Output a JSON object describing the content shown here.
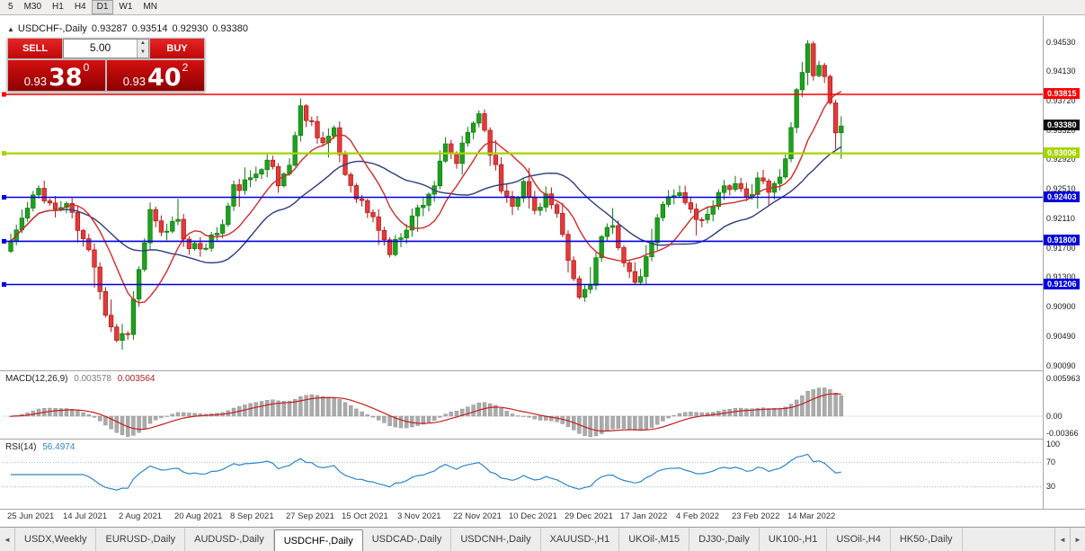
{
  "toolbar": {
    "timeframes": [
      "5",
      "M30",
      "H1",
      "H4",
      "D1",
      "W1",
      "MN"
    ],
    "active": "D1"
  },
  "chart_info": {
    "collapse_icon": "▲",
    "symbol": "USDCHF-,Daily",
    "open": "0.93287",
    "high": "0.93514",
    "low": "0.92930",
    "close": "0.93380"
  },
  "trade_panel": {
    "sell_label": "SELL",
    "buy_label": "BUY",
    "volume": "5.00",
    "spin_up": "▲",
    "spin_down": "▼",
    "sell_price": {
      "prefix": "0.93",
      "big": "38",
      "sup": "0"
    },
    "buy_price": {
      "prefix": "0.93",
      "big": "40",
      "sup": "2"
    }
  },
  "price_axis": {
    "labels": [
      "0.94530",
      "0.94130",
      "0.93720",
      "0.93320",
      "0.92920",
      "0.92510",
      "0.92110",
      "0.91700",
      "0.91300",
      "0.90900",
      "0.90490",
      "0.90090"
    ]
  },
  "levels": [
    {
      "name": "resistance-red",
      "label": "0.93815",
      "price": 0.93815,
      "color": "#ff0000",
      "width": 1.4
    },
    {
      "name": "support-green",
      "label": "0.93006",
      "price": 0.93006,
      "color": "#a6d400",
      "width": 2.2
    },
    {
      "name": "support-blue-1",
      "label": "0.92403",
      "price": 0.92403,
      "color": "#0000dd",
      "width": 1.6
    },
    {
      "name": "support-blue-2",
      "label": "0.91800",
      "price": 0.918,
      "color": "#0000dd",
      "width": 1.6
    },
    {
      "name": "support-blue-3",
      "label": "0.91206",
      "price": 0.91206,
      "color": "#0000dd",
      "width": 1.6
    }
  ],
  "current_price": {
    "label": "0.93380",
    "price": 0.9338,
    "color": "#111111"
  },
  "macd": {
    "name": "MACD(12,26,9)",
    "main_value": "0.003578",
    "signal_value": "0.003564",
    "axis_labels": [
      "0.005963",
      "0.00",
      "-0.00366"
    ]
  },
  "rsi": {
    "name": "RSI(14)",
    "value": "56.4974",
    "axis_labels": [
      "100",
      "70",
      "30"
    ],
    "levels": [
      70,
      30
    ]
  },
  "date_axis": [
    "25 Jun 2021",
    "14 Jul 2021",
    "2 Aug 2021",
    "20 Aug 2021",
    "8 Sep 2021",
    "27 Sep 2021",
    "15 Oct 2021",
    "3 Nov 2021",
    "22 Nov 2021",
    "10 Dec 2021",
    "29 Dec 2021",
    "17 Jan 2022",
    "4 Feb 2022",
    "23 Feb 2022",
    "14 Mar 2022"
  ],
  "tab_bar": {
    "scroll_left": "◄",
    "scroll_right_prev": "◄",
    "scroll_right_next": "►",
    "tabs": [
      "USDX,Weekly",
      "EURUSD-,Daily",
      "AUDUSD-,Daily",
      "USDCHF-,Daily",
      "USDCAD-,Daily",
      "USDCNH-,Daily",
      "XAUUSD-,H1",
      "UKOil-,M15",
      "DJ30-,Daily",
      "UK100-,H1",
      "USOil-,H4",
      "HK50-,Daily"
    ],
    "active": "USDCHF-,Daily"
  },
  "chart_data": {
    "type": "candlestick",
    "symbol": "USDCHF",
    "period": "Daily",
    "bars": 150,
    "seed": 11,
    "price_max_axis": 0.9453,
    "price_min_axis": 0.9009,
    "last_bar": {
      "open": 0.93287,
      "high": 0.93514,
      "low": 0.9293,
      "close": 0.9338
    },
    "peak_high": 0.9452,
    "waypoints": [
      [
        0,
        0.918
      ],
      [
        2,
        0.921
      ],
      [
        5,
        0.9252
      ],
      [
        8,
        0.9222
      ],
      [
        10,
        0.9232
      ],
      [
        12,
        0.9196
      ],
      [
        15,
        0.915
      ],
      [
        17,
        0.9082
      ],
      [
        19,
        0.9046
      ],
      [
        21,
        0.9058
      ],
      [
        23,
        0.914
      ],
      [
        25,
        0.9218
      ],
      [
        27,
        0.9188
      ],
      [
        30,
        0.9214
      ],
      [
        32,
        0.9166
      ],
      [
        35,
        0.9176
      ],
      [
        38,
        0.9202
      ],
      [
        40,
        0.9252
      ],
      [
        43,
        0.9262
      ],
      [
        46,
        0.9298
      ],
      [
        48,
        0.9256
      ],
      [
        50,
        0.9288
      ],
      [
        52,
        0.9362
      ],
      [
        54,
        0.9342
      ],
      [
        56,
        0.9316
      ],
      [
        58,
        0.9328
      ],
      [
        60,
        0.9272
      ],
      [
        63,
        0.9232
      ],
      [
        66,
        0.9198
      ],
      [
        68,
        0.9164
      ],
      [
        70,
        0.919
      ],
      [
        73,
        0.9224
      ],
      [
        76,
        0.9258
      ],
      [
        78,
        0.9308
      ],
      [
        80,
        0.9288
      ],
      [
        82,
        0.9328
      ],
      [
        84,
        0.9358
      ],
      [
        86,
        0.9306
      ],
      [
        88,
        0.9252
      ],
      [
        90,
        0.9234
      ],
      [
        92,
        0.9258
      ],
      [
        94,
        0.9222
      ],
      [
        96,
        0.9244
      ],
      [
        98,
        0.9212
      ],
      [
        100,
        0.9152
      ],
      [
        102,
        0.9102
      ],
      [
        104,
        0.9126
      ],
      [
        106,
        0.9184
      ],
      [
        108,
        0.9198
      ],
      [
        110,
        0.9156
      ],
      [
        112,
        0.9116
      ],
      [
        114,
        0.9152
      ],
      [
        116,
        0.9208
      ],
      [
        118,
        0.9248
      ],
      [
        120,
        0.9244
      ],
      [
        122,
        0.9222
      ],
      [
        124,
        0.9206
      ],
      [
        126,
        0.9234
      ],
      [
        128,
        0.9258
      ],
      [
        130,
        0.9254
      ],
      [
        132,
        0.9236
      ],
      [
        134,
        0.9268
      ],
      [
        136,
        0.9246
      ],
      [
        138,
        0.9266
      ],
      [
        140,
        0.9336
      ],
      [
        141,
        0.9388
      ],
      [
        143,
        0.9446
      ],
      [
        144,
        0.9414
      ],
      [
        145,
        0.9428
      ],
      [
        146,
        0.9398
      ],
      [
        147,
        0.9368
      ],
      [
        148,
        0.9329
      ],
      [
        149,
        0.9338
      ]
    ]
  },
  "colors": {
    "up": "#1ea11e",
    "up_stroke": "#0c7a0c",
    "down": "#e23b3b",
    "down_stroke": "#b01414",
    "ma_fast": "#d42a2a",
    "ma_slow": "#2e3c7e",
    "macd_hist": "#ababab",
    "macd_hist_stroke": "#8a8a8a",
    "macd_signal": "#c81e1e",
    "rsi_line": "#2f86c9",
    "rsi_level": "#9db8d2",
    "separator": "#a6a6a6",
    "axis_text": "#1a1a1a",
    "date_text": "#333333"
  }
}
